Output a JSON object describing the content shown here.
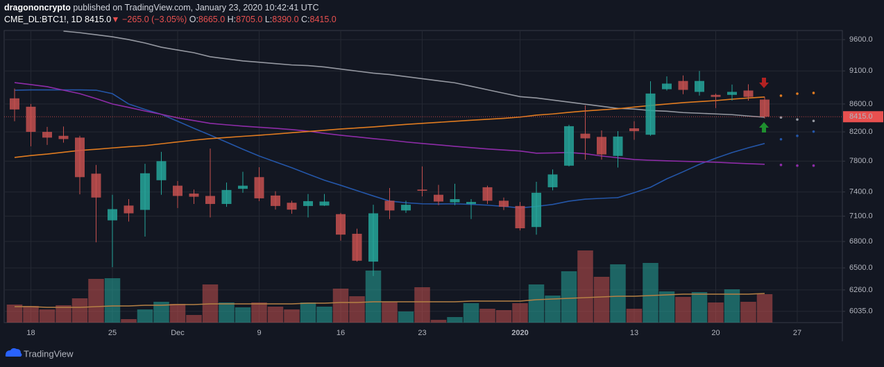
{
  "header": {
    "publisher": "dragononcrypto",
    "published": "published on TradingView.com, January 23, 2020 10:42:41 UTC",
    "symbol": "CME_DL:BTC1!, 1D",
    "last": "8415.0",
    "direction": "▼",
    "change": "−265.0 (−3.05%)",
    "open_label": "O:",
    "open": "8665.0",
    "high_label": "H:",
    "high": "8705.0",
    "low_label": "L:",
    "low": "8390.0",
    "close_label": "C:",
    "close": "8415.0"
  },
  "chart_data": {
    "type": "candlestick",
    "log": true,
    "grid": true,
    "up_color": "#26a69a",
    "down_color": "#c5504f",
    "categories": [
      null,
      "18",
      null,
      null,
      null,
      null,
      "25",
      null,
      null,
      null,
      "Dec",
      null,
      null,
      null,
      null,
      "9",
      null,
      null,
      null,
      null,
      "16",
      null,
      null,
      null,
      null,
      "23",
      null,
      null,
      null,
      null,
      null,
      "2020",
      null,
      null,
      null,
      null,
      null,
      null,
      "13",
      null,
      null,
      null,
      null,
      "20",
      null,
      null,
      null,
      null,
      "27",
      null,
      null
    ],
    "open": [
      8683,
      8560,
      8200,
      8145,
      8120,
      7635,
      7050,
      7230,
      7177,
      7550,
      7480,
      7380,
      7350,
      7250,
      7440,
      7590,
      7355,
      7265,
      7225,
      7230,
      7125,
      6890,
      6570,
      7290,
      7170,
      7430,
      7365,
      7270,
      7250,
      7460,
      7290,
      7225,
      6970,
      7460,
      7740,
      8175,
      8130,
      7870,
      8250,
      8160,
      8820,
      8945,
      8780,
      8735,
      8735,
      8800,
      8665,
      null,
      null,
      null,
      null
    ],
    "high": [
      8830,
      8600,
      8270,
      8275,
      8145,
      7750,
      7365,
      7310,
      7765,
      7925,
      7540,
      7430,
      7970,
      7520,
      7660,
      7720,
      7410,
      7290,
      7375,
      7375,
      7140,
      6950,
      7240,
      7450,
      7290,
      7730,
      7490,
      7505,
      7310,
      7480,
      7330,
      7275,
      7530,
      7690,
      8300,
      8580,
      8220,
      8210,
      8350,
      8940,
      9015,
      9030,
      9100,
      8755,
      8890,
      8895,
      8705,
      null,
      null,
      null,
      null
    ],
    "low": [
      8350,
      8000,
      8020,
      8050,
      7370,
      6790,
      6508,
      7035,
      6857,
      7365,
      7200,
      7250,
      7085,
      7215,
      7390,
      7285,
      7180,
      7130,
      7085,
      7225,
      6810,
      6570,
      6410,
      7065,
      7140,
      7345,
      7235,
      7235,
      7065,
      7250,
      7175,
      6930,
      6880,
      7420,
      7730,
      7820,
      7820,
      7715,
      8090,
      8145,
      8800,
      8745,
      8725,
      8540,
      8650,
      8650,
      8390,
      null,
      null,
      null,
      null
    ],
    "close": [
      8520,
      8200,
      8120,
      8100,
      7590,
      7330,
      7186,
      7135,
      7640,
      7800,
      7350,
      7340,
      7250,
      7425,
      7480,
      7320,
      7225,
      7180,
      7285,
      7280,
      6880,
      6580,
      7135,
      7170,
      7240,
      7415,
      7280,
      7310,
      7275,
      7290,
      7215,
      6955,
      7390,
      7625,
      8280,
      8110,
      7890,
      8135,
      8210,
      8755,
      8905,
      8810,
      8945,
      8705,
      8780,
      8705,
      8415,
      null,
      null,
      null,
      null
    ],
    "volume": [
      26,
      24,
      19,
      25,
      35,
      63,
      64,
      5,
      19,
      30,
      27,
      11,
      55,
      29,
      22,
      29,
      23,
      19,
      29,
      23,
      49,
      38,
      75,
      30,
      16,
      51,
      4,
      8,
      28,
      20,
      18,
      28,
      55,
      39,
      74,
      104,
      66,
      84,
      20,
      86,
      45,
      37,
      44,
      29,
      48,
      30,
      41,
      null,
      null,
      null,
      null
    ],
    "vlim": [
      0,
      421
    ],
    "volume_ma": {
      "color": "#b58044",
      "values": [
        23,
        23,
        22,
        22,
        22,
        23,
        24,
        24,
        25,
        25,
        26,
        26,
        27,
        27,
        27,
        27,
        27,
        27,
        28,
        28,
        29,
        29,
        30,
        30,
        30,
        30,
        30,
        30,
        31,
        31,
        31,
        31,
        33,
        34,
        35,
        36,
        37,
        38,
        38,
        39,
        40,
        41,
        41,
        41,
        41,
        41,
        42,
        null,
        null,
        null,
        null
      ]
    },
    "series": [
      {
        "color": "#9598a1",
        "values": [
          null,
          null,
          null,
          9740,
          9714,
          9680,
          9646,
          9600,
          9544,
          9476,
          9431,
          9387,
          9323,
          9290,
          9257,
          9236,
          9214,
          9193,
          9183,
          9161,
          9129,
          9097,
          9065,
          9044,
          9012,
          8980,
          8948,
          8917,
          8865,
          8812,
          8760,
          8709,
          8689,
          8658,
          8628,
          8597,
          8567,
          8536,
          8526,
          8505,
          8495,
          8475,
          8465,
          8455,
          8445,
          8425,
          8408,
          null,
          null,
          null,
          null
        ],
        "projection": [
          null,
          null,
          null,
          null,
          null,
          null,
          null,
          null,
          null,
          null,
          null,
          null,
          null,
          null,
          null,
          null,
          null,
          null,
          null,
          null,
          null,
          null,
          null,
          null,
          null,
          null,
          null,
          null,
          null,
          null,
          null,
          null,
          null,
          null,
          null,
          null,
          null,
          null,
          null,
          null,
          null,
          null,
          null,
          null,
          null,
          null,
          null,
          8405,
          8375,
          8355,
          null
        ]
      },
      {
        "color": "#2456a8",
        "values": [
          8805,
          8810,
          8810,
          8810,
          8810,
          8805,
          8753,
          8600,
          8520,
          8450,
          8350,
          8250,
          8155,
          8058,
          7960,
          7869,
          7790,
          7713,
          7630,
          7550,
          7485,
          7417,
          7350,
          7286,
          7265,
          7252,
          7250,
          7252,
          7245,
          7235,
          7220,
          7201,
          7220,
          7244,
          7285,
          7310,
          7320,
          7329,
          7391,
          7460,
          7568,
          7660,
          7758,
          7840,
          7916,
          7980,
          8039,
          null,
          null,
          null,
          null
        ],
        "projection": [
          null,
          null,
          null,
          null,
          null,
          null,
          null,
          null,
          null,
          null,
          null,
          null,
          null,
          null,
          null,
          null,
          null,
          null,
          null,
          null,
          null,
          null,
          null,
          null,
          null,
          null,
          null,
          null,
          null,
          null,
          null,
          null,
          null,
          null,
          null,
          null,
          null,
          null,
          null,
          null,
          null,
          null,
          null,
          null,
          null,
          null,
          null,
          8097,
          8145,
          8204,
          null
        ]
      },
      {
        "color": "#8e2ca8",
        "values": [
          8920,
          8890,
          8858,
          8805,
          8753,
          8680,
          8600,
          8550,
          8498,
          8450,
          8398,
          8360,
          8320,
          8300,
          8281,
          8265,
          8250,
          8232,
          8210,
          8180,
          8153,
          8130,
          8106,
          8085,
          8060,
          8039,
          8020,
          8000,
          7982,
          7964,
          7950,
          7936,
          7907,
          7910,
          7916,
          7900,
          7869,
          7845,
          7822,
          7812,
          7804,
          7798,
          7792,
          7786,
          7776,
          7766,
          7758,
          null,
          null,
          null,
          null
        ],
        "projection": [
          null,
          null,
          null,
          null,
          null,
          null,
          null,
          null,
          null,
          null,
          null,
          null,
          null,
          null,
          null,
          null,
          null,
          null,
          null,
          null,
          null,
          null,
          null,
          null,
          null,
          null,
          null,
          null,
          null,
          null,
          null,
          null,
          null,
          null,
          null,
          null,
          null,
          null,
          null,
          null,
          null,
          null,
          null,
          null,
          null,
          null,
          null,
          7750,
          7741,
          7741,
          null
        ]
      },
      {
        "color": "#e07b20",
        "values": [
          7850,
          7875,
          7895,
          7920,
          7944,
          7960,
          7978,
          7995,
          8010,
          8035,
          8060,
          8085,
          8106,
          8122,
          8138,
          8153,
          8170,
          8188,
          8205,
          8222,
          8240,
          8255,
          8270,
          8288,
          8305,
          8320,
          8335,
          8350,
          8365,
          8378,
          8392,
          8410,
          8438,
          8455,
          8478,
          8498,
          8515,
          8530,
          8555,
          8578,
          8600,
          8620,
          8635,
          8650,
          8671,
          8688,
          8703,
          null,
          null,
          null,
          null
        ],
        "projection": [
          null,
          null,
          null,
          null,
          null,
          null,
          null,
          null,
          null,
          null,
          null,
          null,
          null,
          null,
          null,
          null,
          null,
          null,
          null,
          null,
          null,
          null,
          null,
          null,
          null,
          null,
          null,
          null,
          null,
          null,
          null,
          null,
          null,
          null,
          null,
          null,
          null,
          null,
          null,
          null,
          null,
          null,
          null,
          null,
          null,
          null,
          null,
          8723,
          8753,
          8764,
          null
        ]
      }
    ],
    "ylim": [
      5920,
      9750
    ],
    "yticks": [
      {
        "value": 6035,
        "label": "6035.0"
      },
      {
        "value": 6260,
        "label": "6260.0"
      },
      {
        "value": 6500,
        "label": "6500.0"
      },
      {
        "value": 6800,
        "label": "6800.0"
      },
      {
        "value": 7100,
        "label": "7100.0"
      },
      {
        "value": 7400,
        "label": "7400.0"
      },
      {
        "value": 7800,
        "label": "7800.0"
      },
      {
        "value": 8200,
        "label": "8200.0"
      },
      {
        "value": 8600,
        "label": "8600.0"
      },
      {
        "value": 9100,
        "label": "9100.0"
      },
      {
        "value": 9600,
        "label": "9600.0"
      }
    ],
    "last_price": {
      "value": 8415,
      "label": "8415.0",
      "color": "#e8504f"
    }
  },
  "footer": {
    "brand": "TradingView"
  }
}
